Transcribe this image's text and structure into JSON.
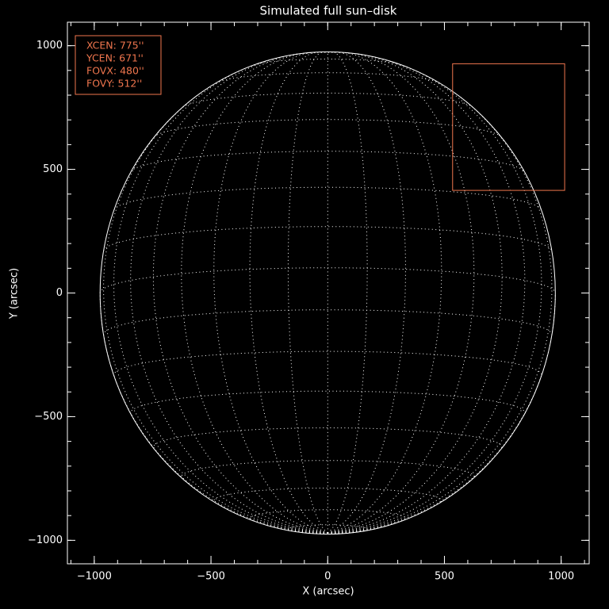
{
  "chart_data": {
    "type": "sun-disk",
    "title": "Simulated full sun–disk",
    "x_label": "X (arcsec)",
    "y_label": "Y (arcsec)",
    "xlim": [
      -1115,
      1120
    ],
    "ylim": [
      -1095,
      1095
    ],
    "xticks": [
      {
        "value": -1000,
        "label": "−1000"
      },
      {
        "value": -500,
        "label": "−500"
      },
      0,
      500,
      1000
    ],
    "yticks": [
      {
        "value": -1000,
        "label": "−1000"
      },
      {
        "value": -500,
        "label": "−500"
      },
      0,
      500,
      1000
    ],
    "minor_tick_step": 100,
    "solar_radius": 975,
    "grid_spacing_deg": 10,
    "b0_deg": -6,
    "disk_color": "#ffffff",
    "fov": {
      "xcen": 775,
      "ycen": 671,
      "fovx": 480,
      "fovy": 512,
      "color": "#f0764e"
    },
    "info_labels": [
      "XCEN:  775''",
      "YCEN:  671''",
      "FOVX:  480''",
      "FOVY:  512''"
    ]
  }
}
